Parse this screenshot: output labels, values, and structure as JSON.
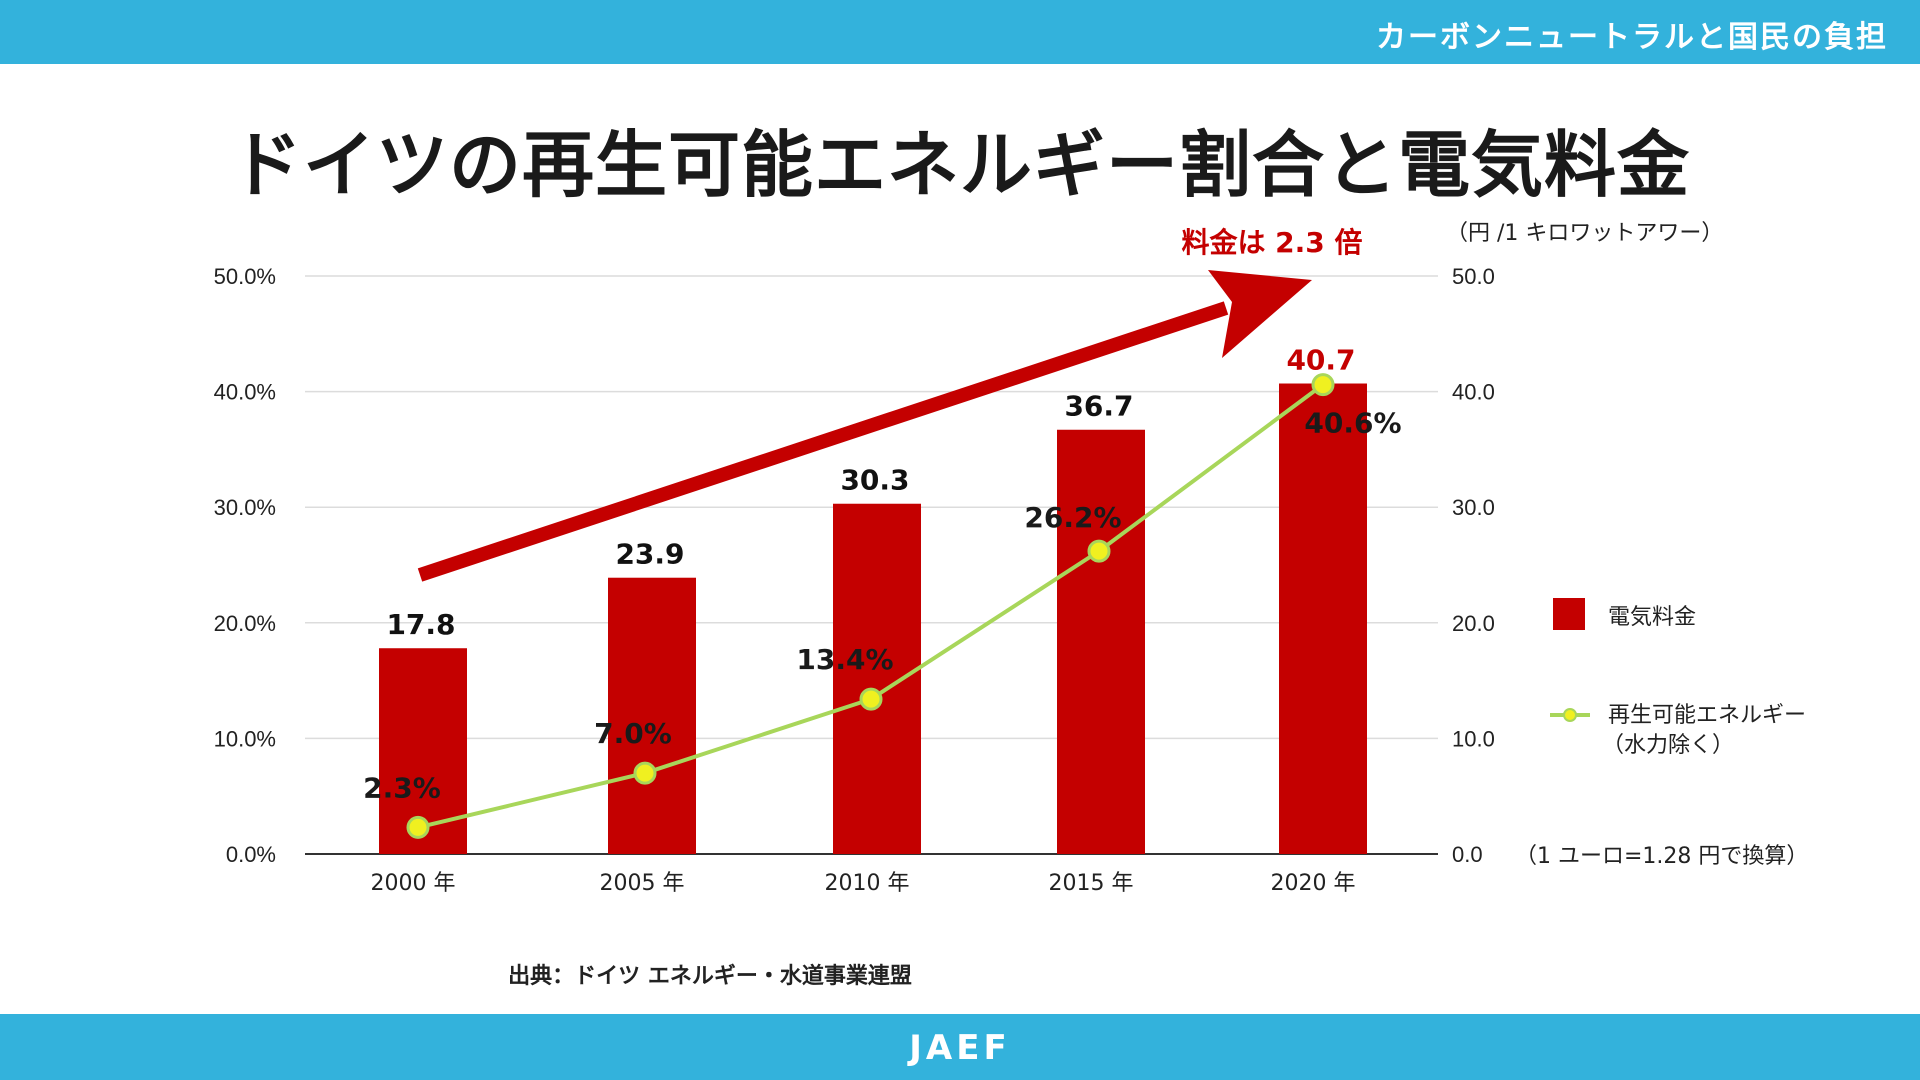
{
  "header": {
    "title": "カーボンニュートラルと国民の負担"
  },
  "footer": {
    "brand": "JAEF"
  },
  "page_title": "ドイツの再生可能エネルギー割合と電気料金",
  "source": "出典：ドイツ エネルギー・水道事業連盟",
  "colors": {
    "accent_bar": "#33b2dc",
    "bar_fill": "#c40000",
    "line": "#a8d65a",
    "marker_fill": "#f0f020",
    "arrow": "#c40000"
  },
  "annotation": {
    "arrow_label": "料金は 2.3 倍",
    "unit_right": "（円 /1 キロワットアワー）",
    "exchange_note": "（1 ユーロ=1.28 円で換算）"
  },
  "legend": {
    "bars": "電気料金",
    "line_1": "再生可能エネルギー",
    "line_2": "（水力除く）"
  },
  "chart_data": {
    "type": "bar+line",
    "title": "ドイツの再生可能エネルギー割合と電気料金",
    "categories": [
      "2000 年",
      "2005 年",
      "2010 年",
      "2015 年",
      "2020 年"
    ],
    "series": [
      {
        "name": "電気料金",
        "type": "bar",
        "axis": "right",
        "values": [
          17.8,
          23.9,
          30.3,
          36.7,
          40.7
        ],
        "labels": [
          "17.8",
          "23.9",
          "30.3",
          "36.7",
          "40.7"
        ]
      },
      {
        "name": "再生可能エネルギー（水力除く）",
        "type": "line",
        "axis": "left",
        "values": [
          2.3,
          7.0,
          13.4,
          26.2,
          40.6
        ],
        "labels": [
          "2.3%",
          "7.0%",
          "13.4%",
          "26.2%",
          "40.6%"
        ]
      }
    ],
    "left_axis": {
      "ylim": [
        0,
        50
      ],
      "ticks": [
        "0.0%",
        "10.0%",
        "20.0%",
        "30.0%",
        "40.0%",
        "50.0%"
      ]
    },
    "right_axis": {
      "ylim": [
        0,
        50
      ],
      "ticks": [
        "0.0",
        "10.0",
        "20.0",
        "30.0",
        "40.0",
        "50.0"
      ],
      "label": "（円 /1 キロワットアワー）"
    },
    "grid": true
  }
}
